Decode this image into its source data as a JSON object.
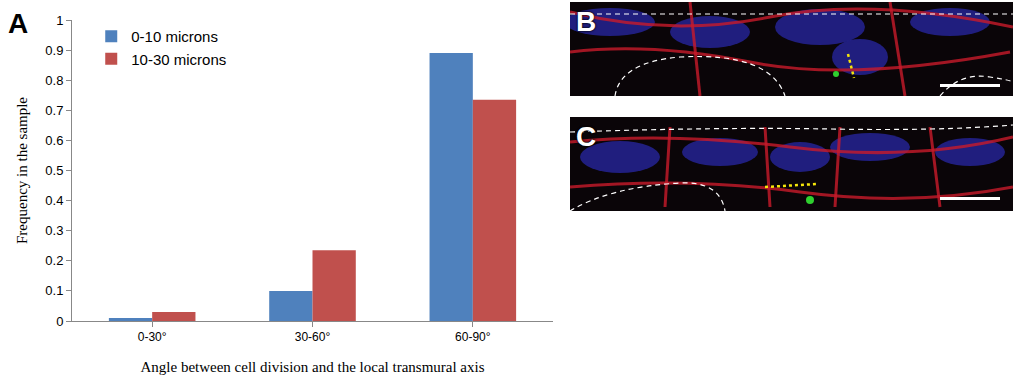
{
  "chart_data": {
    "type": "bar",
    "categories": [
      "0-30°",
      "30-60°",
      "60-90°"
    ],
    "series": [
      {
        "name": "0-10 microns",
        "color": "#4f81bd",
        "values": [
          0.01,
          0.1,
          0.89
        ]
      },
      {
        "name": "10-30 microns",
        "color": "#c0504d",
        "values": [
          0.03,
          0.235,
          0.735
        ]
      }
    ],
    "x_label": "Angle between cell division and the local transmural axis",
    "y_label": "Frequency in the sample",
    "ylim": [
      0,
      1
    ],
    "yticks": [
      0,
      0.1,
      0.2,
      0.3,
      0.4,
      0.5,
      0.6,
      0.7,
      0.8,
      0.9,
      1
    ],
    "grid": false,
    "legend": "top-left"
  },
  "panels": [
    {
      "label": "A"
    },
    {
      "label": "B"
    },
    {
      "label": "C"
    }
  ]
}
